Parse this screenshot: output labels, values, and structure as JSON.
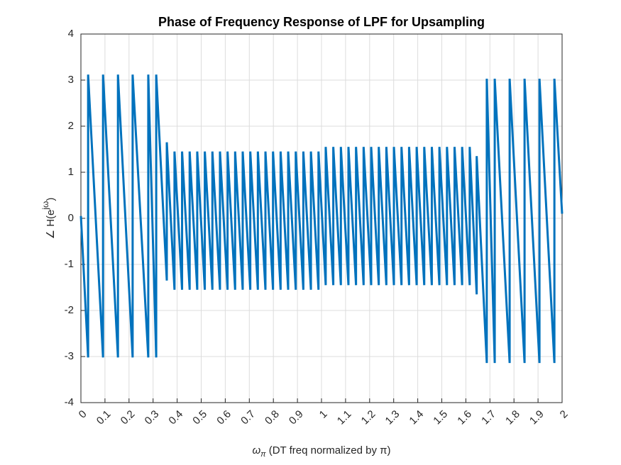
{
  "chart_data": {
    "type": "line",
    "title": "Phase of Frequency Response of LPF for Upsampling",
    "xlabel": {
      "symbol": "ω",
      "sub": "π",
      "text": " (DT freq normalized by π)"
    },
    "ylabel": {
      "text": "∠ H(e",
      "sup": "jω",
      "end": ")"
    },
    "color": "#0072bd",
    "grid": true,
    "xlim": [
      0,
      2
    ],
    "ylim": [
      -4,
      4
    ],
    "xticks": [
      0,
      0.1,
      0.2,
      0.3,
      0.4,
      0.5,
      0.6,
      0.7,
      0.8,
      0.9,
      1,
      1.1,
      1.2,
      1.3,
      1.4,
      1.5,
      1.6,
      1.7,
      1.8,
      1.9,
      2
    ],
    "yticks": [
      -4,
      -3,
      -2,
      -1,
      0,
      1,
      2,
      3,
      4
    ],
    "x": [
      0,
      0.03,
      0.03,
      0.092,
      0.092,
      0.154,
      0.154,
      0.215,
      0.215,
      0.28,
      0.28,
      0.313,
      0.313,
      0.357,
      0.357,
      0.389,
      0.389,
      0.4205,
      0.4205,
      0.452,
      0.452,
      0.4835,
      0.4835,
      0.515,
      0.515,
      0.5465,
      0.5465,
      0.578,
      0.578,
      0.6095,
      0.6095,
      0.641,
      0.641,
      0.6725,
      0.6725,
      0.704,
      0.704,
      0.7355,
      0.7355,
      0.767,
      0.767,
      0.7985,
      0.7985,
      0.83,
      0.83,
      0.8615,
      0.8615,
      0.893,
      0.893,
      0.9245,
      0.9245,
      0.956,
      0.956,
      0.9875,
      0.9875,
      1.0175,
      1.0175,
      1.049,
      1.049,
      1.0805,
      1.0805,
      1.112,
      1.112,
      1.1435,
      1.1435,
      1.175,
      1.175,
      1.2065,
      1.2065,
      1.238,
      1.238,
      1.2695,
      1.2695,
      1.301,
      1.301,
      1.3325,
      1.3325,
      1.364,
      1.364,
      1.3955,
      1.3955,
      1.427,
      1.427,
      1.4585,
      1.4585,
      1.49,
      1.49,
      1.5215,
      1.5215,
      1.553,
      1.553,
      1.5845,
      1.5845,
      1.616,
      1.616,
      1.645,
      1.645,
      1.687,
      1.687,
      1.72,
      1.72,
      1.782,
      1.782,
      1.844,
      1.844,
      1.906,
      1.906,
      1.968,
      1.968,
      2
    ],
    "values": [
      0.05,
      -3.02,
      3.12,
      -3.02,
      3.12,
      -3.02,
      3.12,
      -3.02,
      3.12,
      -3.02,
      3.12,
      -3.02,
      3.12,
      -1.35,
      1.65,
      -1.55,
      1.45,
      -1.55,
      1.45,
      -1.55,
      1.45,
      -1.55,
      1.45,
      -1.55,
      1.45,
      -1.55,
      1.45,
      -1.55,
      1.45,
      -1.55,
      1.45,
      -1.55,
      1.45,
      -1.55,
      1.45,
      -1.55,
      1.45,
      -1.55,
      1.45,
      -1.55,
      1.45,
      -1.55,
      1.45,
      -1.55,
      1.45,
      -1.55,
      1.45,
      -1.55,
      1.45,
      -1.55,
      1.45,
      -1.55,
      1.45,
      -1.55,
      1.45,
      -1.45,
      1.55,
      -1.45,
      1.55,
      -1.45,
      1.55,
      -1.45,
      1.55,
      -1.45,
      1.55,
      -1.45,
      1.55,
      -1.45,
      1.55,
      -1.45,
      1.55,
      -1.45,
      1.55,
      -1.45,
      1.55,
      -1.45,
      1.55,
      -1.45,
      1.55,
      -1.45,
      1.55,
      -1.45,
      1.55,
      -1.45,
      1.55,
      -1.45,
      1.55,
      -1.45,
      1.55,
      -1.45,
      1.55,
      -1.45,
      1.55,
      -1.45,
      1.55,
      -1.65,
      1.35,
      -3.14,
      3.03,
      -3.14,
      3.03,
      -3.14,
      3.03,
      -3.14,
      3.03,
      -3.14,
      3.03,
      -3.14,
      3.03,
      0.1
    ]
  }
}
